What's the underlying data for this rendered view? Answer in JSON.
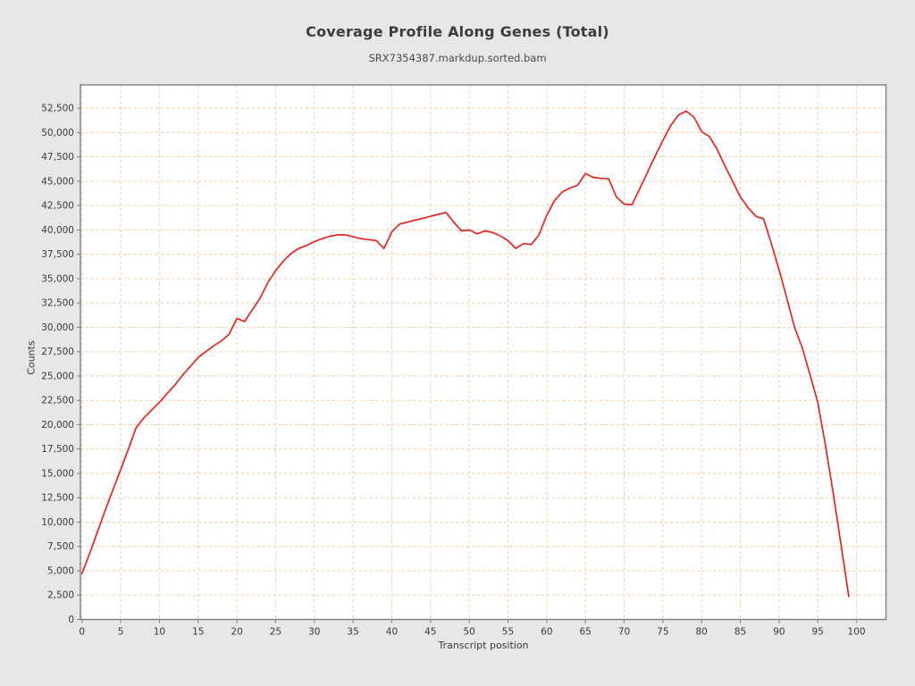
{
  "page": {
    "background": "#e7e7e7"
  },
  "chart_data": {
    "type": "line",
    "title": "Coverage Profile Along Genes (Total)",
    "subtitle": "SRX7354387.markdup.sorted.bam",
    "xlabel": "Transcript position",
    "ylabel": "Counts",
    "x_start": 0,
    "x_step": 1,
    "values": [
      4700,
      6800,
      9000,
      11200,
      13300,
      15400,
      17500,
      19700,
      20700,
      21500,
      22300,
      23200,
      24100,
      25100,
      26000,
      26900,
      27500,
      28100,
      28600,
      29300,
      30900,
      30600,
      31800,
      33000,
      34600,
      35800,
      36800,
      37600,
      38100,
      38400,
      38800,
      39100,
      39350,
      39500,
      39500,
      39300,
      39100,
      39000,
      38900,
      38100,
      39800,
      40600,
      40800,
      41000,
      41200,
      41400,
      41600,
      41800,
      40800,
      39900,
      40000,
      39600,
      39900,
      39750,
      39400,
      38900,
      38100,
      38600,
      38500,
      39500,
      41500,
      43000,
      43900,
      44300,
      44600,
      45800,
      45400,
      45300,
      45250,
      43400,
      42650,
      42600,
      44200,
      45900,
      47600,
      49200,
      50700,
      51800,
      52200,
      51600,
      50100,
      49600,
      48300,
      46600,
      45000,
      43400,
      42300,
      41400,
      41150,
      38600,
      35900,
      33000,
      30000,
      27900,
      25100,
      22300,
      17800,
      12900,
      7700,
      2350
    ],
    "xlim": [
      -0.2,
      103.8
    ],
    "ylim": [
      0,
      54900
    ],
    "x_tick_min": 0,
    "x_tick_max": 100,
    "x_tick_step": 5,
    "y_tick_min": 0,
    "y_tick_max": 52500,
    "y_tick_step": 2500,
    "grid": true,
    "legend_position": "none",
    "colors": {
      "line": "#e82420",
      "grid": "#f6c9a2",
      "plot_bg": "#ffffff",
      "frame": "#7d7d7d",
      "tick_text": "#3a3a3a"
    }
  }
}
